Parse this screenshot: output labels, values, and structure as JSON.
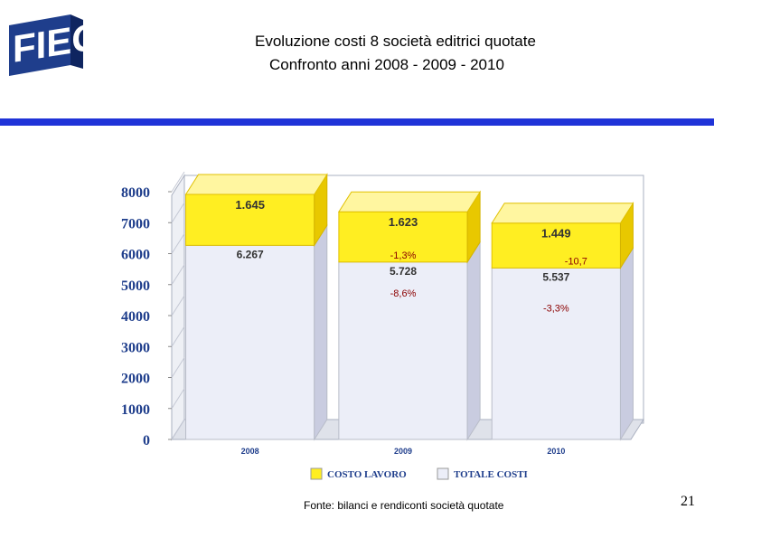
{
  "header": {
    "title": "Evoluzione costi 8 società editrici quotate",
    "subtitle": "Confronto anni 2008 - 2009 - 2010",
    "logo_text": "FIEG",
    "rule_color": "#1f33d8"
  },
  "chart_data": {
    "type": "bar",
    "stacked": true,
    "categories": [
      "2008",
      "2009",
      "2010"
    ],
    "series": [
      {
        "name": "TOTALE COSTI",
        "values": [
          6267,
          5728,
          5537
        ],
        "labels": [
          "6.267",
          "5.728",
          "5.537"
        ],
        "color": "#eceef8"
      },
      {
        "name": "COSTO LAVORO",
        "values": [
          1645,
          1623,
          1449
        ],
        "labels": [
          "1.645",
          "1.623",
          "1.449"
        ],
        "color": "#ffee22"
      }
    ],
    "changes": [
      {
        "category": "2009",
        "series": "COSTO LAVORO",
        "label": "-1,3%"
      },
      {
        "category": "2010",
        "series": "COSTO LAVORO",
        "label": "-10,7"
      },
      {
        "category": "2009",
        "series": "TOTALE COSTI",
        "label": "-8,6%"
      },
      {
        "category": "2010",
        "series": "TOTALE COSTI",
        "label": "-3,3%"
      }
    ],
    "ylim": [
      0,
      8000
    ],
    "yticks": [
      "0",
      "1000",
      "2000",
      "3000",
      "4000",
      "5000",
      "6000",
      "7000",
      "8000"
    ],
    "ytick_values": [
      0,
      1000,
      2000,
      3000,
      4000,
      5000,
      6000,
      7000,
      8000
    ],
    "legend_position": "bottom",
    "grid": false
  },
  "footer": {
    "source": "Fonte: bilanci e rendiconti società quotate",
    "page_number": "21"
  }
}
